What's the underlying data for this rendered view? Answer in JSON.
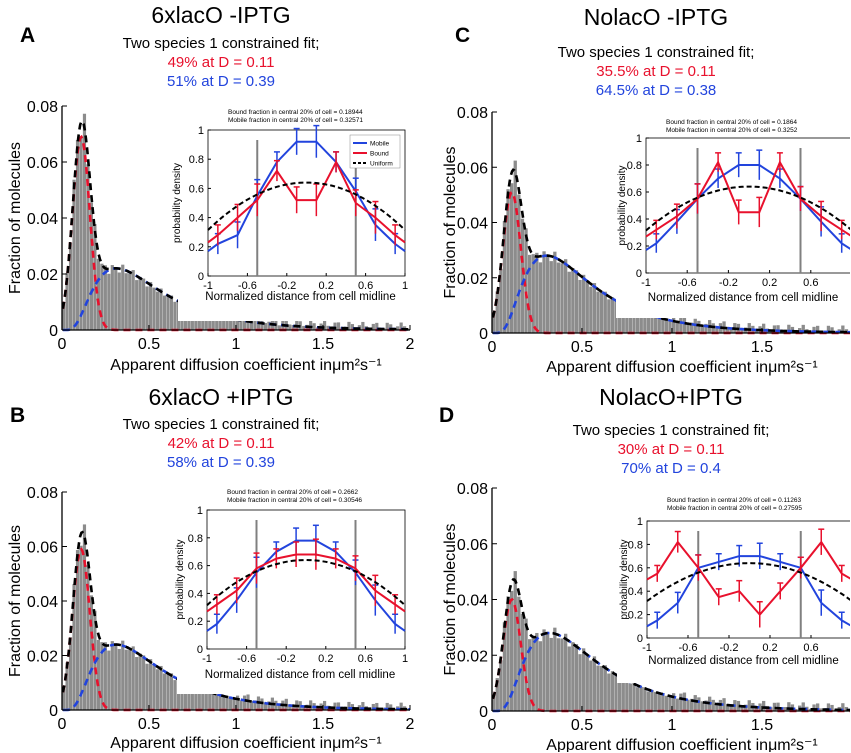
{
  "colors": {
    "red": "#e8112d",
    "blue": "#2244dd",
    "black": "#000000",
    "histogram": "#8c8c8c",
    "cell_boundary_lines": "#808080"
  },
  "chart_data": [
    {
      "letter": "A",
      "title": "6xlacO -IPTG",
      "subtitle": "Two species 1 constrained fit;",
      "fraction_1_label": "49% at D = 0.11",
      "fraction_2_label": "51% at D = 0.39",
      "type": "histogram",
      "xlabel": "Apparent diffusion coefficient inμm²s⁻¹",
      "ylabel": "Fraction of molecules",
      "xlim": [
        0,
        2
      ],
      "ylim": [
        0,
        0.08
      ],
      "xticks": [
        "0",
        "0.5",
        "1",
        "1.5",
        "2"
      ],
      "yticks": [
        "0",
        "0.02",
        "0.04",
        "0.06",
        "0.08"
      ],
      "fits": {
        "peak_total": 0.075,
        "peak_bound": 0.069,
        "D_bound": 0.11,
        "peak_mobile": 0.022,
        "D_mobile": 0.39
      },
      "inset": {
        "type": "line",
        "note_1": "Bound fraction in central 20% of cell = 0.18944",
        "note_2": "Mobile fraction in central 20% of cell = 0.32571",
        "legend": [
          "Mobile",
          "Bound",
          "Uniform"
        ],
        "legend_position": "top-right",
        "xlabel": "Normalized distance from cell midline",
        "ylabel": "probability density",
        "xlim": [
          -1,
          1
        ],
        "ylim": [
          0,
          1
        ],
        "xticks": [
          "-1",
          "-0.6",
          "-0.2",
          "0.2",
          "0.6",
          "1"
        ],
        "yticks": [
          "0",
          "0.2",
          "0.4",
          "0.6",
          "0.8",
          "1"
        ],
        "vlines": [
          -0.5,
          0.5
        ],
        "x": [
          -0.9,
          -0.7,
          -0.5,
          -0.3,
          -0.1,
          0.1,
          0.3,
          0.5,
          0.7,
          0.9
        ],
        "series": [
          {
            "name": "Mobile",
            "values": [
              0.22,
              0.28,
              0.55,
              0.78,
              0.92,
              0.92,
              0.78,
              0.58,
              0.35,
              0.22
            ]
          },
          {
            "name": "Bound",
            "values": [
              0.28,
              0.4,
              0.52,
              0.72,
              0.52,
              0.52,
              0.78,
              0.5,
              0.4,
              0.28
            ]
          },
          {
            "name": "Uniform",
            "values": [
              0.33,
              0.45,
              0.56,
              0.62,
              0.64,
              0.64,
              0.62,
              0.56,
              0.45,
              0.33
            ]
          }
        ]
      }
    },
    {
      "letter": "C",
      "title": "NolacO -IPTG",
      "subtitle": "Two species 1 constrained fit;",
      "fraction_1_label": "35.5% at D = 0.11",
      "fraction_2_label": "64.5% at D = 0.38",
      "type": "histogram",
      "xlabel": "Apparent diffusion coefficient inμm²s⁻¹",
      "ylabel": "Fraction of molecules",
      "xlim": [
        0,
        2
      ],
      "ylim": [
        0,
        0.08
      ],
      "xticks": [
        "0",
        "0.5",
        "1",
        "1.5"
      ],
      "yticks": [
        "0",
        "0.02",
        "0.04",
        "0.06",
        "0.08"
      ],
      "fits": {
        "peak_total": 0.057,
        "peak_bound": 0.051,
        "D_bound": 0.11,
        "peak_mobile": 0.028,
        "D_mobile": 0.38
      },
      "inset": {
        "type": "line",
        "note_1": "Bound fraction in central 20% of cell = 0.1864",
        "note_2": "Mobile fraction in central 20% of cell = 0.3252",
        "legend": [],
        "xlabel": "Normalized distance from cell midline",
        "ylabel": "probability density",
        "xlim": [
          -1,
          1
        ],
        "ylim": [
          0,
          1
        ],
        "xticks": [
          "-1",
          "-0.6",
          "-0.2",
          "0.2",
          "0.6"
        ],
        "yticks": [
          "0",
          "0.2",
          "0.4",
          "0.6",
          "0.8",
          "1"
        ],
        "vlines": [
          -0.5,
          0.5
        ],
        "x": [
          -0.9,
          -0.7,
          -0.5,
          -0.3,
          -0.1,
          0.1,
          0.3,
          0.5,
          0.7,
          0.9
        ],
        "series": [
          {
            "name": "Mobile",
            "values": [
              0.22,
              0.38,
              0.55,
              0.7,
              0.8,
              0.8,
              0.7,
              0.55,
              0.38,
              0.22
            ]
          },
          {
            "name": "Bound",
            "values": [
              0.32,
              0.42,
              0.55,
              0.82,
              0.45,
              0.45,
              0.82,
              0.55,
              0.42,
              0.32
            ]
          },
          {
            "name": "Uniform",
            "values": [
              0.33,
              0.45,
              0.56,
              0.62,
              0.64,
              0.64,
              0.62,
              0.56,
              0.45,
              0.33
            ]
          }
        ]
      }
    },
    {
      "letter": "B",
      "title": "6xlacO +IPTG",
      "subtitle": "Two species 1 constrained fit;",
      "fraction_1_label": "42% at D = 0.11",
      "fraction_2_label": "58% at D = 0.39",
      "type": "histogram",
      "xlabel": "Apparent diffusion coefficient inμm²s⁻¹",
      "ylabel": "Fraction of molecules",
      "xlim": [
        0,
        2
      ],
      "ylim": [
        0,
        0.08
      ],
      "xticks": [
        "0",
        "0.5",
        "1",
        "1.5",
        "2"
      ],
      "yticks": [
        "0",
        "0.02",
        "0.04",
        "0.06",
        "0.08"
      ],
      "fits": {
        "peak_total": 0.064,
        "peak_bound": 0.059,
        "D_bound": 0.11,
        "peak_mobile": 0.024,
        "D_mobile": 0.39
      },
      "inset": {
        "type": "line",
        "note_1": "Bound fraction in central 20% of cell = 0.2662",
        "note_2": "Mobile fraction in central 20% of cell = 0.30546",
        "legend": [],
        "xlabel": "Normalized distance from cell midline",
        "ylabel": "probability density",
        "xlim": [
          -1,
          1
        ],
        "ylim": [
          0,
          1
        ],
        "xticks": [
          "-1",
          "-0.6",
          "-0.2",
          "0.2",
          "0.6",
          "1"
        ],
        "yticks": [
          "0",
          "0.2",
          "0.4",
          "0.6",
          "0.8",
          "1"
        ],
        "vlines": [
          -0.5,
          0.5
        ],
        "x": [
          -0.9,
          -0.7,
          -0.5,
          -0.3,
          -0.1,
          0.1,
          0.3,
          0.5,
          0.7,
          0.9
        ],
        "series": [
          {
            "name": "Mobile",
            "values": [
              0.18,
              0.35,
              0.55,
              0.7,
              0.78,
              0.78,
              0.7,
              0.55,
              0.35,
              0.18
            ]
          },
          {
            "name": "Bound",
            "values": [
              0.32,
              0.42,
              0.58,
              0.65,
              0.68,
              0.68,
              0.65,
              0.58,
              0.42,
              0.32
            ]
          },
          {
            "name": "Uniform",
            "values": [
              0.33,
              0.45,
              0.56,
              0.62,
              0.64,
              0.64,
              0.62,
              0.56,
              0.45,
              0.33
            ]
          }
        ]
      }
    },
    {
      "letter": "D",
      "title": "NolacO+IPTG",
      "subtitle": "Two species 1 constrained fit;",
      "fraction_1_label": "30% at D = 0.11",
      "fraction_2_label": "70% at D = 0.4",
      "type": "histogram",
      "xlabel": "Apparent diffusion coefficient inμm²s⁻¹",
      "ylabel": "Fraction of molecules",
      "xlim": [
        0,
        2
      ],
      "ylim": [
        0,
        0.08
      ],
      "xticks": [
        "0",
        "0.5",
        "1",
        "1.5"
      ],
      "yticks": [
        "0",
        "0.02",
        "0.04",
        "0.06",
        "0.08"
      ],
      "fits": {
        "peak_total": 0.047,
        "peak_bound": 0.04,
        "D_bound": 0.11,
        "peak_mobile": 0.028,
        "D_mobile": 0.4
      },
      "inset": {
        "type": "line",
        "note_1": "Bound fraction in central 20% of cell = 0.11263",
        "note_2": "Mobile fraction in central 20% of cell = 0.27595",
        "legend": [],
        "xlabel": "Normalized distance from cell midline",
        "ylabel": "probability density",
        "xlim": [
          -1,
          1
        ],
        "ylim": [
          0,
          1
        ],
        "xticks": [
          "-1",
          "-0.6",
          "-0.2",
          "0.2",
          "0.6"
        ],
        "yticks": [
          "0",
          "0.2",
          "0.4",
          "0.6",
          "0.8",
          "1"
        ],
        "vlines": [
          -0.5,
          0.5
        ],
        "x": [
          -0.9,
          -0.7,
          -0.5,
          -0.3,
          -0.1,
          0.1,
          0.3,
          0.5,
          0.7,
          0.9
        ],
        "series": [
          {
            "name": "Mobile",
            "values": [
              0.15,
              0.3,
              0.6,
              0.65,
              0.7,
              0.7,
              0.65,
              0.6,
              0.3,
              0.15
            ]
          },
          {
            "name": "Bound",
            "values": [
              0.55,
              0.82,
              0.6,
              0.35,
              0.4,
              0.2,
              0.4,
              0.6,
              0.82,
              0.55
            ]
          },
          {
            "name": "Uniform",
            "values": [
              0.33,
              0.45,
              0.56,
              0.62,
              0.64,
              0.64,
              0.62,
              0.56,
              0.45,
              0.33
            ]
          }
        ]
      }
    }
  ]
}
